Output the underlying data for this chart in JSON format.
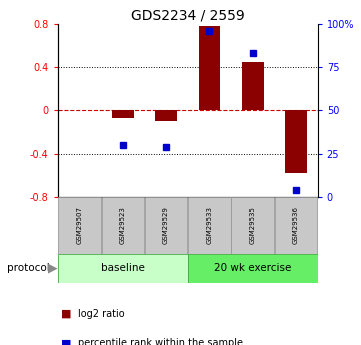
{
  "title": "GDS2234 / 2559",
  "samples": [
    "GSM29507",
    "GSM29523",
    "GSM29529",
    "GSM29533",
    "GSM29535",
    "GSM29536"
  ],
  "log2_ratio": [
    0.0,
    -0.07,
    -0.1,
    0.78,
    0.45,
    -0.58
  ],
  "percentile_rank": [
    null,
    30,
    29,
    96,
    83,
    4
  ],
  "ylim_left": [
    -0.8,
    0.8
  ],
  "ylim_right": [
    0,
    100
  ],
  "yticks_left": [
    -0.8,
    -0.4,
    0.0,
    0.4,
    0.8
  ],
  "yticks_right": [
    0,
    25,
    50,
    75,
    100
  ],
  "bar_color": "#8B0000",
  "dot_color": "#0000CD",
  "dashed_line_color": "#CC0000",
  "baseline_color": "#C8FFC8",
  "exercise_color": "#66EE66",
  "sample_box_color": "#C8C8C8",
  "legend_items": [
    {
      "label": "log2 ratio",
      "color": "#8B0000"
    },
    {
      "label": "percentile rank within the sample",
      "color": "#0000CD"
    }
  ]
}
